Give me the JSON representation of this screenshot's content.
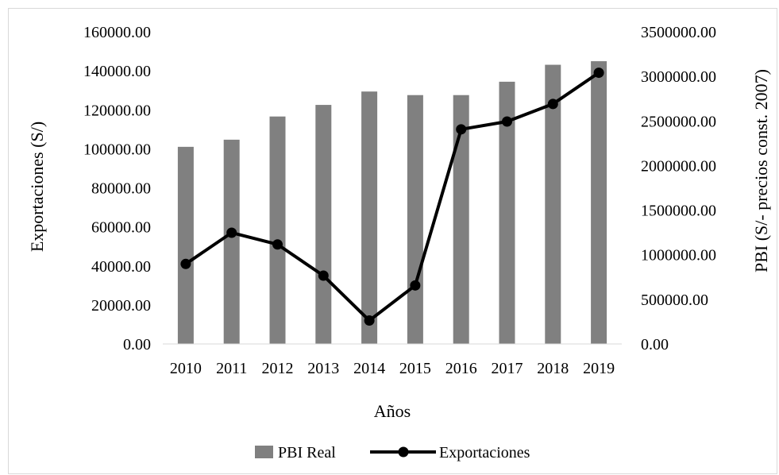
{
  "chart_data": {
    "type": "bar+line",
    "categories": [
      "2010",
      "2011",
      "2012",
      "2013",
      "2014",
      "2015",
      "2016",
      "2017",
      "2018",
      "2019"
    ],
    "series": [
      {
        "name": "PBI Real",
        "type": "bar",
        "axis": "right",
        "color": "#808080",
        "values": [
          2210000,
          2290000,
          2550000,
          2680000,
          2830000,
          2790000,
          2790000,
          2940000,
          3130000,
          3170000
        ]
      },
      {
        "name": "Exportaciones",
        "type": "line",
        "axis": "left",
        "color": "#000000",
        "values": [
          41000,
          57000,
          51000,
          35000,
          12000,
          30000,
          110000,
          114000,
          123000,
          139000
        ]
      }
    ],
    "xlabel": "Años",
    "ylabel_left": "Exportaciones (S/)",
    "ylabel_right": "PBI (S/- precios const. 2007)",
    "ylim_left": [
      0,
      160000
    ],
    "ylim_right": [
      0,
      3500000
    ],
    "yticks_left": [
      "0.00",
      "20000.00",
      "40000.00",
      "60000.00",
      "80000.00",
      "100000.00",
      "120000.00",
      "140000.00",
      "160000.00"
    ],
    "yticks_right": [
      "0.00",
      "500000.00",
      "1000000.00",
      "1500000.00",
      "2000000.00",
      "2500000.00",
      "3000000.00",
      "3500000.00"
    ],
    "legend_position": "bottom",
    "grid": false
  }
}
